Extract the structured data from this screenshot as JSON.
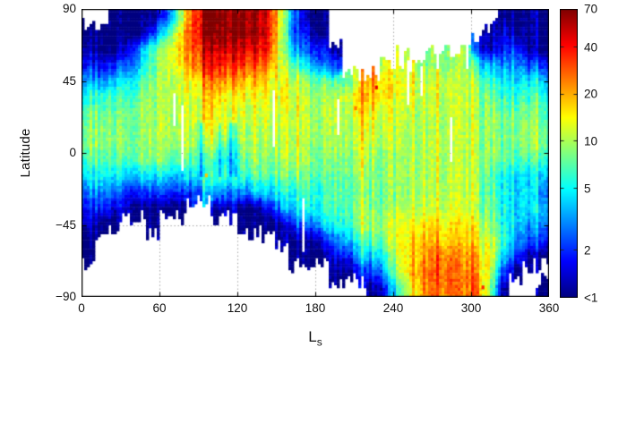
{
  "figure": {
    "background": "#ffffff",
    "axis_color": "#000000",
    "grid_color": "#9a9a9a",
    "text_color": "#111111"
  },
  "chart_data": {
    "type": "heatmap",
    "title": "",
    "xlabel": {
      "main": "L",
      "sub": "s"
    },
    "ylabel": "Latitude",
    "x_range": [
      0,
      360
    ],
    "y_range": [
      -90,
      90
    ],
    "x_ticks": [
      0,
      60,
      120,
      180,
      240,
      300,
      360
    ],
    "x_tick_labels": [
      "0",
      "60",
      "120",
      "180",
      "240",
      "300",
      "360"
    ],
    "y_ticks": [
      90,
      45,
      0,
      -45,
      -90
    ],
    "y_tick_labels": [
      "90",
      "45",
      "0",
      "−45",
      "−90"
    ],
    "grid": {
      "style": "dotted",
      "x_lines": [
        60,
        120,
        180,
        240,
        300
      ],
      "y_lines": [
        45,
        0,
        -45
      ]
    },
    "colorbar": {
      "scale": "log",
      "min": 1,
      "max": 70,
      "colormap": "jet",
      "ticks": [
        {
          "v": 70,
          "label": "70"
        },
        {
          "v": 40,
          "label": "40"
        },
        {
          "v": 20,
          "label": "20"
        },
        {
          "v": 10,
          "label": "10"
        },
        {
          "v": 5,
          "label": "5"
        },
        {
          "v": 2,
          "label": "2"
        },
        {
          "v": 1,
          "label": "<1"
        }
      ]
    },
    "ls_centers": [
      5,
      15,
      25,
      35,
      45,
      55,
      65,
      75,
      85,
      95,
      105,
      115,
      125,
      135,
      145,
      155,
      165,
      175,
      185,
      195,
      205,
      215,
      225,
      235,
      245,
      255,
      265,
      275,
      285,
      295,
      305,
      315,
      325,
      335,
      345,
      355
    ],
    "lat_centers": [
      85,
      75,
      65,
      55,
      45,
      35,
      25,
      15,
      5,
      -5,
      -15,
      -25,
      -35,
      -45,
      -55,
      -65,
      -75,
      -85
    ],
    "values": [
      [
        null,
        null,
        1,
        1,
        1,
        1,
        2,
        8,
        30,
        60,
        70,
        70,
        70,
        65,
        40,
        10,
        2,
        1,
        1,
        null,
        null,
        null,
        null,
        null,
        null,
        null,
        null,
        null,
        null,
        null,
        null,
        null,
        1,
        1,
        1,
        1
      ],
      [
        1,
        1,
        1,
        1,
        1,
        2,
        5,
        15,
        35,
        55,
        65,
        70,
        65,
        60,
        45,
        8,
        2,
        1.5,
        1,
        null,
        null,
        null,
        null,
        null,
        null,
        null,
        null,
        null,
        null,
        null,
        null,
        1,
        1.5,
        1,
        1,
        1
      ],
      [
        1.5,
        1,
        1,
        1.5,
        3,
        6,
        10,
        18,
        30,
        40,
        50,
        55,
        50,
        45,
        35,
        8,
        3,
        2,
        2,
        1,
        null,
        null,
        null,
        null,
        null,
        null,
        null,
        null,
        null,
        null,
        2,
        1,
        2,
        2,
        1,
        1
      ],
      [
        2,
        1.5,
        2,
        2.5,
        4,
        7,
        11,
        15,
        25,
        32,
        38,
        38,
        35,
        30,
        25,
        10,
        6,
        4,
        3,
        2,
        null,
        null,
        null,
        12,
        10,
        12,
        8,
        10,
        8,
        10,
        5,
        3,
        3,
        3,
        2,
        2
      ],
      [
        4,
        3,
        4,
        5,
        6,
        8,
        10,
        12,
        15,
        20,
        24,
        22,
        20,
        18,
        15,
        12,
        10,
        8,
        8,
        6,
        8,
        12,
        22,
        15,
        12,
        14,
        10,
        12,
        10,
        10,
        8,
        5,
        5,
        4,
        4,
        4
      ],
      [
        6,
        6,
        7,
        7,
        8,
        9,
        10,
        12,
        13,
        15,
        15,
        14,
        14,
        14,
        13,
        12,
        11,
        10,
        10,
        10,
        12,
        16,
        18,
        14,
        12,
        12,
        11,
        11,
        10,
        10,
        9,
        7,
        6,
        6,
        6,
        6
      ],
      [
        8,
        8,
        8,
        8,
        9,
        9,
        10,
        11,
        12,
        13,
        13,
        13,
        12,
        12,
        12,
        11,
        11,
        10,
        10,
        10,
        11,
        13,
        14,
        12,
        11,
        11,
        10,
        10,
        10,
        10,
        9,
        8,
        7,
        7,
        7,
        7
      ],
      [
        9,
        9,
        9,
        9,
        9,
        10,
        10,
        10,
        11,
        12,
        12,
        12,
        11,
        11,
        11,
        10,
        10,
        10,
        10,
        10,
        10,
        11,
        12,
        11,
        10,
        10,
        10,
        10,
        10,
        10,
        9,
        8,
        8,
        8,
        8,
        8
      ],
      [
        9,
        9,
        9,
        9,
        9,
        9,
        9,
        10,
        10,
        9,
        8,
        8,
        10,
        10,
        10,
        10,
        10,
        9,
        9,
        9,
        10,
        10,
        10,
        10,
        10,
        10,
        10,
        10,
        10,
        10,
        9,
        8,
        8,
        8,
        8,
        8
      ],
      [
        7,
        7,
        7,
        7,
        8,
        8,
        8,
        7,
        7,
        6,
        5,
        6,
        8,
        9,
        9,
        9,
        9,
        9,
        8,
        8,
        9,
        9,
        9,
        9,
        9,
        10,
        10,
        10,
        10,
        10,
        9,
        8,
        7,
        6,
        6,
        6
      ],
      [
        5,
        5,
        5,
        4,
        4,
        4,
        4,
        4,
        5,
        5,
        6,
        6,
        6,
        7,
        7,
        7,
        7,
        7,
        7,
        7,
        8,
        8,
        8,
        9,
        9,
        10,
        10,
        10,
        10,
        10,
        9,
        6,
        5,
        4,
        4,
        4
      ],
      [
        3,
        3,
        3,
        2,
        2,
        2,
        2,
        2,
        2,
        3,
        3,
        3,
        3,
        4,
        4,
        5,
        5,
        6,
        6,
        7,
        7,
        7,
        8,
        8,
        9,
        10,
        10,
        10,
        10,
        10,
        9,
        6,
        5,
        4,
        4,
        3
      ],
      [
        2,
        2,
        1.5,
        1.5,
        1,
        1,
        1,
        1,
        null,
        null,
        1,
        1.5,
        1,
        1,
        2,
        3,
        4,
        5,
        6,
        6,
        7,
        8,
        8,
        9,
        10,
        11,
        11,
        11,
        11,
        11,
        9,
        7,
        5,
        4,
        4,
        4
      ],
      [
        1.5,
        1,
        1,
        null,
        null,
        1,
        null,
        null,
        null,
        null,
        null,
        null,
        1,
        1,
        1,
        1,
        2,
        2.5,
        4,
        5,
        6,
        8,
        9,
        10,
        12,
        14,
        15,
        15,
        14,
        14,
        12,
        8,
        5,
        4,
        3,
        3
      ],
      [
        1,
        null,
        null,
        null,
        null,
        null,
        null,
        null,
        null,
        null,
        null,
        null,
        null,
        null,
        null,
        1,
        1,
        1,
        1.5,
        2.5,
        4,
        5,
        7,
        9,
        13,
        16,
        18,
        18,
        16,
        16,
        14,
        10,
        6,
        3,
        2,
        2
      ],
      [
        1,
        null,
        null,
        null,
        null,
        null,
        null,
        null,
        null,
        null,
        null,
        null,
        null,
        null,
        null,
        null,
        1,
        1,
        1,
        1.5,
        2,
        3,
        4,
        6,
        12,
        18,
        22,
        25,
        22,
        20,
        18,
        12,
        4,
        2,
        1,
        1
      ],
      [
        null,
        null,
        null,
        null,
        null,
        null,
        null,
        null,
        null,
        null,
        null,
        null,
        null,
        null,
        null,
        null,
        null,
        null,
        null,
        1,
        1,
        1.5,
        2,
        4,
        10,
        20,
        25,
        28,
        25,
        22,
        20,
        10,
        2,
        1,
        null,
        null
      ],
      [
        null,
        null,
        null,
        null,
        null,
        null,
        null,
        null,
        null,
        null,
        null,
        null,
        null,
        null,
        null,
        null,
        null,
        null,
        null,
        null,
        null,
        null,
        1,
        2,
        6,
        15,
        22,
        25,
        25,
        22,
        25,
        8,
        1,
        null,
        null,
        1
      ]
    ],
    "gaps": [
      {
        "ls": 71,
        "w": 2.5,
        "lat1": 38,
        "lat2": 16
      },
      {
        "ls": 78,
        "w": 2.2,
        "lat1": 30,
        "lat2": -12
      },
      {
        "ls": 148,
        "w": 2.5,
        "lat1": 40,
        "lat2": 3
      },
      {
        "ls": 170,
        "w": 2.5,
        "lat1": -28,
        "lat2": -62
      },
      {
        "ls": 197,
        "w": 2.0,
        "lat1": 34,
        "lat2": 12
      },
      {
        "ls": 252,
        "w": 2.0,
        "lat1": 58,
        "lat2": 30
      },
      {
        "ls": 262,
        "w": 2.0,
        "lat1": 55,
        "lat2": 35
      },
      {
        "ls": 285,
        "w": 2.2,
        "lat1": 22,
        "lat2": -6
      }
    ],
    "spots": [
      {
        "ls": 227,
        "lat": 41,
        "v": 45
      },
      {
        "ls": 309,
        "lat": -84,
        "v": 35
      },
      {
        "ls": 96,
        "lat": -14,
        "v": 18
      },
      {
        "ls": 211,
        "lat": 28,
        "v": 25
      }
    ]
  }
}
